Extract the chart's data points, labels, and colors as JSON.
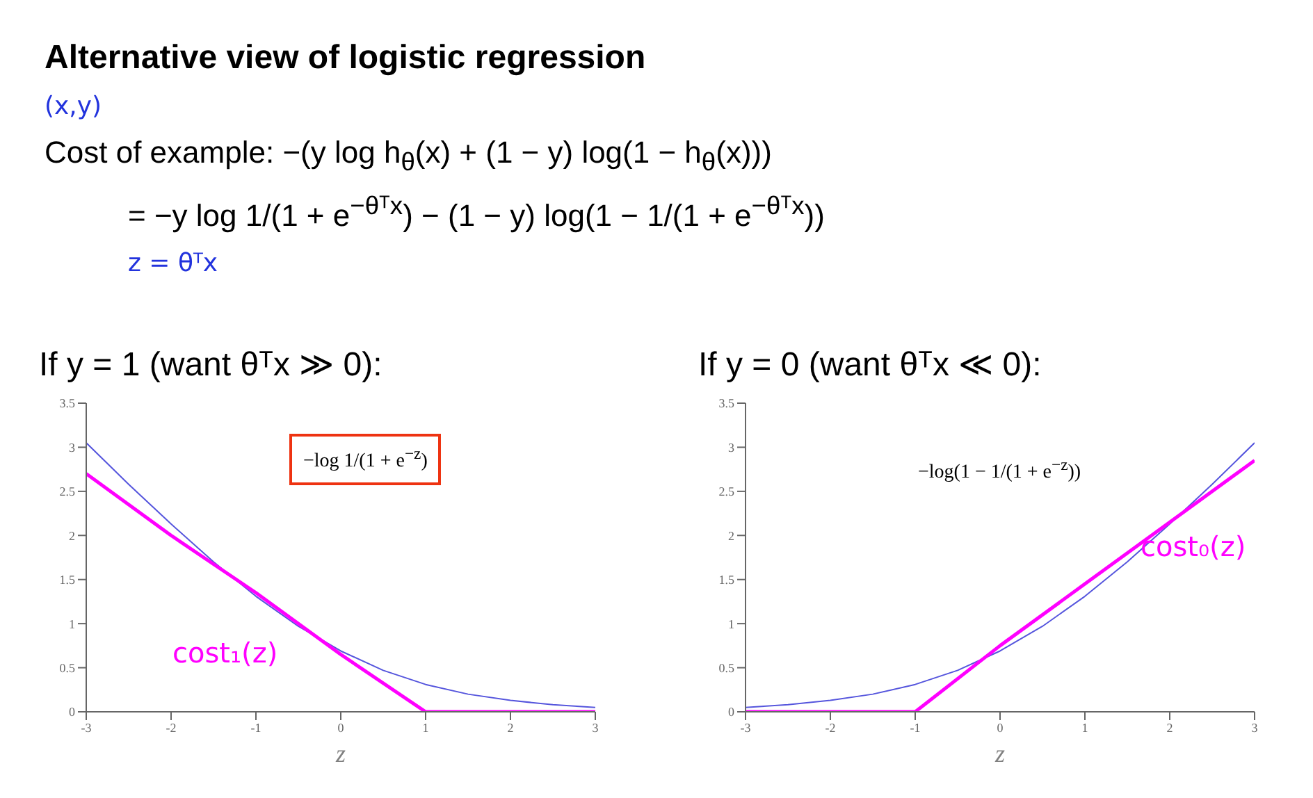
{
  "chart_data": [
    {
      "type": "line",
      "title": "If y = 1 (want θᵀx ≫ 0):",
      "xlabel": "z",
      "annotations": [
        "Alternative view of logistic regression",
        "(x,y)",
        "Cost of example: −(y log h$_{θ}$(x) + (1 − y) log(1 − h$_{θ}$(x)))",
        "= −y log 1/(1 + e$^{−θᵀx}$) − (1 − y) log(1 − 1/(1 + e$^{−θᵀx}$))",
        "z = θᵀx",
        "−log 1/(1 + e$^{−z}$)"
      ],
      "xlim": [
        -3,
        3
      ],
      "ylim": [
        0,
        3.5
      ],
      "xticks": [
        -3,
        -2,
        -1,
        0,
        1,
        2,
        3
      ],
      "yticks": [
        0,
        0.5,
        1,
        1.5,
        2,
        2.5,
        3,
        3.5
      ],
      "marker": "none",
      "grid": false,
      "series": [
        {
          "color": "#5555dd",
          "x": [
            -3,
            -2.5,
            -2,
            -1.5,
            -1,
            -0.5,
            0,
            0.5,
            1,
            1.5,
            2,
            2.5,
            3
          ],
          "values": [
            3.05,
            2.58,
            2.13,
            1.7,
            1.31,
            0.97,
            0.69,
            0.47,
            0.31,
            0.2,
            0.13,
            0.08,
            0.05
          ]
        },
        {
          "name": "cost₁(z)",
          "color": "#ff00ff",
          "x": [
            -3,
            -2,
            -1,
            0,
            1,
            2,
            3
          ],
          "values": [
            2.7,
            2.0,
            1.35,
            0.65,
            0,
            0,
            0
          ]
        }
      ]
    },
    {
      "type": "line",
      "title": "If y = 0 (want θᵀx ≪ 0):",
      "xlabel": "z",
      "annotations": [
        "−log(1 − 1/(1 + e$^{−z}$))"
      ],
      "xlim": [
        -3,
        3
      ],
      "ylim": [
        0,
        3.5
      ],
      "xticks": [
        -3,
        -2,
        -1,
        0,
        1,
        2,
        3
      ],
      "yticks": [
        0,
        0.5,
        1,
        1.5,
        2,
        2.5,
        3,
        3.5
      ],
      "marker": "none",
      "grid": false,
      "series": [
        {
          "color": "#5555dd",
          "x": [
            -3,
            -2.5,
            -2,
            -1.5,
            -1,
            -0.5,
            0,
            0.5,
            1,
            1.5,
            2,
            2.5,
            3
          ],
          "values": [
            0.05,
            0.08,
            0.13,
            0.2,
            0.31,
            0.47,
            0.69,
            0.97,
            1.31,
            1.7,
            2.13,
            2.58,
            3.05
          ]
        },
        {
          "name": "cost₀(z)",
          "color": "#ff00ff",
          "x": [
            -3,
            -2,
            -1,
            0,
            1,
            2,
            3
          ],
          "values": [
            0,
            0,
            0,
            0.75,
            1.45,
            2.15,
            2.85
          ]
        }
      ]
    }
  ]
}
